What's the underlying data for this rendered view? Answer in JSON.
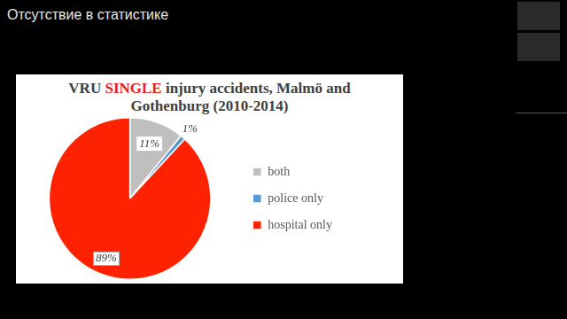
{
  "heading": "Отсутствие в статистике",
  "chart_data": {
    "type": "pie",
    "title": "VRU SINGLE injury accidents, Malmö and Gothenburg (2010-2014)",
    "categories": [
      "both",
      "police only",
      "hospital only"
    ],
    "values": [
      11,
      1,
      89
    ],
    "value_labels": [
      "11%",
      "1%",
      "89%"
    ],
    "colors": [
      "#bfbfbf",
      "#5b9bd5",
      "#ff2200"
    ],
    "data_labels": true,
    "legend": "right"
  }
}
